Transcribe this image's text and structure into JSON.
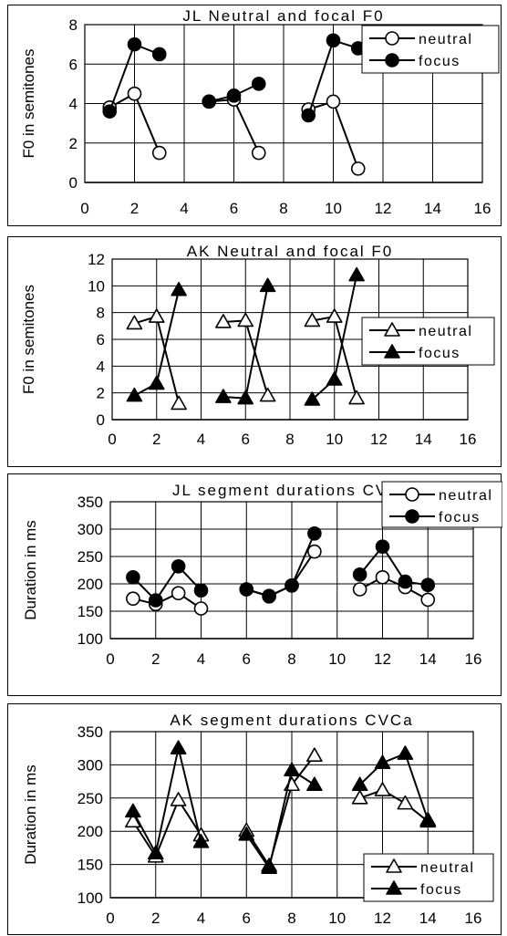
{
  "chart_data": [
    {
      "type": "line",
      "title": "JL  Neutral and focal F0",
      "ylabel": "F0 in semitones",
      "xlabel": "",
      "xlim": [
        0,
        16
      ],
      "ylim": [
        0,
        8
      ],
      "xticks": [
        "0",
        "2",
        "4",
        "6",
        "8",
        "10",
        "12",
        "14",
        "16"
      ],
      "yticks": [
        "0",
        "2",
        "4",
        "6",
        "8"
      ],
      "grid": true,
      "legend": "top-right",
      "marker": "circle",
      "series": [
        {
          "name": "neutral",
          "filled": false,
          "segments": [
            [
              [
                1,
                3.8
              ],
              [
                2,
                4.5
              ],
              [
                3,
                1.5
              ]
            ],
            [
              [
                5,
                4.1
              ],
              [
                6,
                4.2
              ],
              [
                7,
                1.5
              ]
            ],
            [
              [
                9,
                3.7
              ],
              [
                10,
                4.1
              ],
              [
                11,
                0.7
              ]
            ]
          ]
        },
        {
          "name": "focus",
          "filled": true,
          "segments": [
            [
              [
                1,
                3.6
              ],
              [
                2,
                7.0
              ],
              [
                3,
                6.5
              ]
            ],
            [
              [
                5,
                4.1
              ],
              [
                6,
                4.4
              ],
              [
                7,
                5.0
              ]
            ],
            [
              [
                9,
                3.4
              ],
              [
                10,
                7.2
              ],
              [
                11,
                6.8
              ]
            ]
          ]
        }
      ]
    },
    {
      "type": "line",
      "title": "AK  Neutral and focal F0",
      "ylabel": "F0 in semitones",
      "xlabel": "",
      "xlim": [
        0,
        16
      ],
      "ylim": [
        0,
        12
      ],
      "xticks": [
        "0",
        "2",
        "4",
        "6",
        "8",
        "10",
        "12",
        "14",
        "16"
      ],
      "yticks": [
        "0",
        "2",
        "4",
        "6",
        "8",
        "10",
        "12"
      ],
      "grid": true,
      "legend": "right",
      "marker": "triangle",
      "series": [
        {
          "name": "neutral",
          "filled": false,
          "segments": [
            [
              [
                1,
                7.2
              ],
              [
                2,
                7.7
              ],
              [
                3,
                1.2
              ]
            ],
            [
              [
                5,
                7.3
              ],
              [
                6,
                7.4
              ],
              [
                7,
                1.8
              ]
            ],
            [
              [
                9,
                7.4
              ],
              [
                10,
                7.7
              ],
              [
                11,
                1.6
              ]
            ]
          ]
        },
        {
          "name": "focus",
          "filled": true,
          "segments": [
            [
              [
                1,
                1.8
              ],
              [
                2,
                2.7
              ],
              [
                3,
                9.7
              ]
            ],
            [
              [
                5,
                1.7
              ],
              [
                6,
                1.6
              ],
              [
                7,
                10.0
              ]
            ],
            [
              [
                9,
                1.5
              ],
              [
                10,
                3.0
              ],
              [
                11,
                10.8
              ]
            ]
          ]
        }
      ]
    },
    {
      "type": "line",
      "title": "JL segment durations  CVCa",
      "ylabel": "Duration in ms",
      "xlabel": "",
      "xlim": [
        0,
        16
      ],
      "ylim": [
        100,
        350
      ],
      "xticks": [
        "0",
        "2",
        "4",
        "6",
        "8",
        "10",
        "12",
        "14",
        "16"
      ],
      "yticks": [
        "100",
        "150",
        "200",
        "250",
        "300",
        "350"
      ],
      "grid": true,
      "legend": "top-right",
      "marker": "circle",
      "series": [
        {
          "name": "neutral",
          "filled": false,
          "segments": [
            [
              [
                1,
                173
              ],
              [
                2,
                163
              ],
              [
                3,
                183
              ],
              [
                4,
                155
              ]
            ],
            [
              [
                6,
                190
              ],
              [
                7,
                178
              ],
              [
                8,
                197
              ],
              [
                9,
                259
              ]
            ],
            [
              [
                11,
                190
              ],
              [
                12,
                212
              ],
              [
                13,
                194
              ],
              [
                14,
                171
              ]
            ]
          ]
        },
        {
          "name": "focus",
          "filled": true,
          "segments": [
            [
              [
                1,
                212
              ],
              [
                2,
                170
              ],
              [
                3,
                232
              ],
              [
                4,
                188
              ]
            ],
            [
              [
                6,
                190
              ],
              [
                7,
                177
              ],
              [
                8,
                197
              ],
              [
                9,
                292
              ]
            ],
            [
              [
                11,
                217
              ],
              [
                12,
                268
              ],
              [
                13,
                204
              ],
              [
                14,
                198
              ]
            ]
          ]
        }
      ]
    },
    {
      "type": "line",
      "title": "AK segment durations  CVCa",
      "ylabel": "Duration in ms",
      "xlabel": "",
      "xlim": [
        0,
        16
      ],
      "ylim": [
        100,
        350
      ],
      "xticks": [
        "0",
        "2",
        "4",
        "6",
        "8",
        "10",
        "12",
        "14",
        "16"
      ],
      "yticks": [
        "100",
        "150",
        "200",
        "250",
        "300",
        "350"
      ],
      "grid": true,
      "legend": "bottom-right",
      "marker": "triangle",
      "series": [
        {
          "name": "neutral",
          "filled": false,
          "segments": [
            [
              [
                1,
                215
              ],
              [
                2,
                162
              ],
              [
                3,
                247
              ],
              [
                4,
                194
              ]
            ],
            [
              [
                6,
                201
              ],
              [
                7,
                148
              ],
              [
                8,
                270
              ],
              [
                9,
                314
              ]
            ],
            [
              [
                11,
                250
              ],
              [
                12,
                262
              ],
              [
                13,
                242
              ],
              [
                14,
                215
              ]
            ]
          ]
        },
        {
          "name": "focus",
          "filled": true,
          "segments": [
            [
              [
                1,
                230
              ],
              [
                2,
                167
              ],
              [
                3,
                325
              ],
              [
                4,
                184
              ]
            ],
            [
              [
                6,
                195
              ],
              [
                7,
                145
              ],
              [
                8,
                292
              ],
              [
                9,
                270
              ]
            ],
            [
              [
                11,
                270
              ],
              [
                12,
                303
              ],
              [
                13,
                317
              ],
              [
                14,
                217
              ]
            ]
          ]
        }
      ]
    }
  ]
}
